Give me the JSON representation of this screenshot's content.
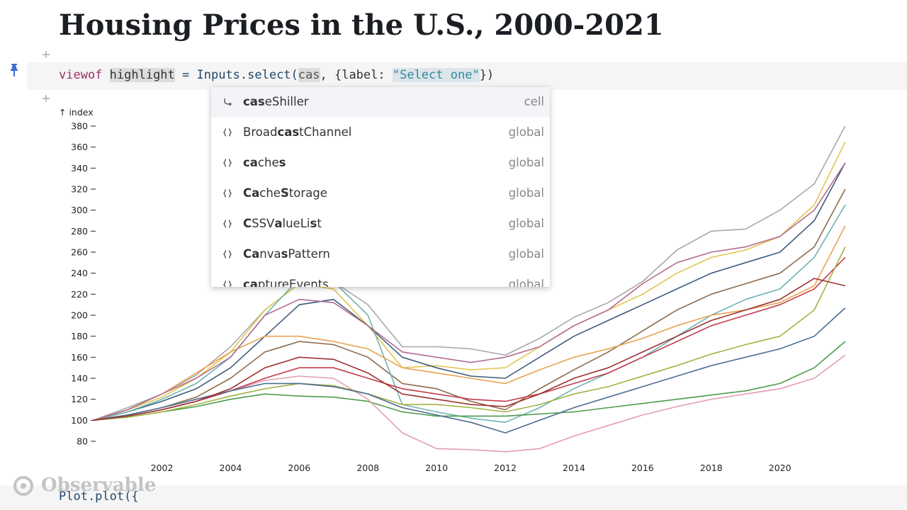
{
  "header": {
    "title": "Housing Prices in the U.S., 2000-2021"
  },
  "code": {
    "tokens": [
      "viewof ",
      "highlight",
      " = Inputs.select(",
      "cas",
      ", {label: ",
      "\"Select one\"",
      "})"
    ]
  },
  "autocomplete": {
    "items": [
      {
        "parts": [
          {
            "text": "cas",
            "b": true
          },
          {
            "text": "eShiller",
            "b": false
          }
        ],
        "kind": "cell"
      },
      {
        "parts": [
          {
            "text": "Broad",
            "b": false
          },
          {
            "text": "cas",
            "b": true
          },
          {
            "text": "tChannel",
            "b": false
          }
        ],
        "kind": "global"
      },
      {
        "parts": [
          {
            "text": "ca",
            "b": true
          },
          {
            "text": "che",
            "b": false
          },
          {
            "text": "s",
            "b": true
          }
        ],
        "kind": "global"
      },
      {
        "parts": [
          {
            "text": "Ca",
            "b": true
          },
          {
            "text": "che",
            "b": false
          },
          {
            "text": "S",
            "b": true
          },
          {
            "text": "torage",
            "b": false
          }
        ],
        "kind": "global"
      },
      {
        "parts": [
          {
            "text": "C",
            "b": true
          },
          {
            "text": "SSV",
            "b": false
          },
          {
            "text": "a",
            "b": true
          },
          {
            "text": "lueLi",
            "b": false
          },
          {
            "text": "s",
            "b": true
          },
          {
            "text": "t",
            "b": false
          }
        ],
        "kind": "global"
      },
      {
        "parts": [
          {
            "text": "Ca",
            "b": true
          },
          {
            "text": "nva",
            "b": false
          },
          {
            "text": "s",
            "b": true
          },
          {
            "text": "Pattern",
            "b": false
          }
        ],
        "kind": "global"
      },
      {
        "parts": [
          {
            "text": "ca",
            "b": true
          },
          {
            "text": "ptureEvents",
            "b": false
          }
        ],
        "kind": "global"
      }
    ]
  },
  "chart_data": {
    "type": "line",
    "ylabel": "↑ index",
    "x": [
      2000,
      2001,
      2002,
      2003,
      2004,
      2005,
      2006,
      2007,
      2008,
      2009,
      2010,
      2011,
      2012,
      2013,
      2014,
      2015,
      2016,
      2017,
      2018,
      2019,
      2020,
      2021,
      2021.9
    ],
    "xlim": [
      2000,
      2022
    ],
    "xticks": [
      2002,
      2004,
      2006,
      2008,
      2010,
      2012,
      2014,
      2016,
      2018,
      2020
    ],
    "ylim": [
      75,
      385
    ],
    "yticks": [
      80,
      100,
      120,
      140,
      160,
      180,
      200,
      220,
      240,
      260,
      280,
      300,
      320,
      340,
      360,
      380
    ],
    "series": [
      {
        "color": "#a8a8a8",
        "values": [
          100,
          112,
          125,
          143,
          170,
          205,
          230,
          232,
          210,
          170,
          170,
          168,
          162,
          178,
          198,
          212,
          232,
          262,
          280,
          282,
          300,
          325,
          380
        ]
      },
      {
        "color": "#e2c64c",
        "values": [
          100,
          110,
          122,
          140,
          165,
          205,
          230,
          225,
          190,
          150,
          152,
          148,
          150,
          170,
          190,
          205,
          220,
          240,
          255,
          262,
          275,
          305,
          365
        ]
      },
      {
        "color": "#3e5c7c",
        "values": [
          100,
          108,
          118,
          130,
          150,
          180,
          210,
          215,
          190,
          160,
          150,
          142,
          140,
          160,
          180,
          195,
          210,
          225,
          240,
          250,
          260,
          290,
          345
        ]
      },
      {
        "color": "#8c6b4c",
        "values": [
          100,
          105,
          112,
          122,
          140,
          165,
          175,
          172,
          160,
          135,
          130,
          118,
          110,
          130,
          148,
          165,
          185,
          205,
          220,
          230,
          240,
          265,
          320
        ]
      },
      {
        "color": "#6fb3b3",
        "values": [
          100,
          108,
          120,
          135,
          160,
          200,
          235,
          232,
          200,
          115,
          108,
          102,
          98,
          112,
          130,
          145,
          160,
          180,
          200,
          215,
          225,
          255,
          305
        ]
      },
      {
        "color": "#4c9c4c",
        "values": [
          100,
          103,
          108,
          113,
          120,
          125,
          123,
          122,
          118,
          108,
          104,
          104,
          104,
          106,
          108,
          112,
          116,
          120,
          124,
          128,
          135,
          150,
          175
        ]
      },
      {
        "color": "#e59cb2",
        "values": [
          100,
          104,
          110,
          118,
          128,
          138,
          142,
          140,
          120,
          88,
          73,
          72,
          70,
          73,
          85,
          95,
          105,
          113,
          120,
          125,
          130,
          140,
          162
        ]
      },
      {
        "color": "#c43c4c",
        "values": [
          100,
          104,
          110,
          118,
          128,
          140,
          150,
          150,
          140,
          130,
          125,
          120,
          118,
          125,
          135,
          145,
          160,
          175,
          190,
          200,
          210,
          225,
          255
        ]
      },
      {
        "color": "#e9a252",
        "values": [
          100,
          110,
          125,
          145,
          165,
          180,
          180,
          175,
          168,
          150,
          145,
          140,
          135,
          148,
          160,
          168,
          178,
          190,
          200,
          205,
          212,
          228,
          285
        ]
      },
      {
        "color": "#a3b243",
        "values": [
          100,
          103,
          108,
          115,
          123,
          130,
          135,
          133,
          125,
          115,
          115,
          112,
          108,
          115,
          125,
          132,
          142,
          152,
          163,
          172,
          180,
          205,
          265
        ]
      },
      {
        "color": "#4c6c92",
        "values": [
          100,
          105,
          112,
          120,
          128,
          135,
          135,
          132,
          125,
          112,
          105,
          98,
          88,
          100,
          112,
          122,
          132,
          142,
          152,
          160,
          168,
          180,
          207
        ]
      },
      {
        "color": "#b26c92",
        "values": [
          100,
          110,
          125,
          140,
          160,
          200,
          215,
          212,
          190,
          165,
          160,
          155,
          160,
          170,
          190,
          205,
          230,
          250,
          260,
          265,
          275,
          300,
          345
        ]
      },
      {
        "color": "#9c3232",
        "values": [
          100,
          104,
          110,
          118,
          130,
          150,
          160,
          158,
          145,
          125,
          120,
          115,
          113,
          125,
          140,
          150,
          165,
          180,
          195,
          205,
          215,
          235,
          228
        ]
      }
    ]
  },
  "footer": {
    "brand": "Observable",
    "next_code": "Plot.plot({"
  }
}
